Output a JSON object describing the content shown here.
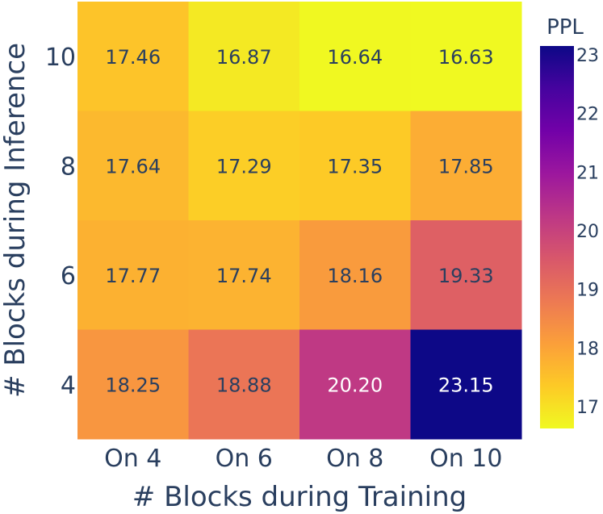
{
  "chart_data": {
    "type": "heatmap",
    "xlabel": "# Blocks during Training",
    "ylabel": "# Blocks during Inference",
    "x_categories": [
      "On 4",
      "On 6",
      "On 8",
      "On 10"
    ],
    "y_categories": [
      "10",
      "8",
      "6",
      "4"
    ],
    "values": [
      [
        17.46,
        16.87,
        16.64,
        16.63
      ],
      [
        17.64,
        17.29,
        17.35,
        17.85
      ],
      [
        17.77,
        17.74,
        18.16,
        19.33
      ],
      [
        18.25,
        18.88,
        20.2,
        23.15
      ]
    ],
    "value_labels": [
      [
        "17.46",
        "16.87",
        "16.64",
        "16.63"
      ],
      [
        "17.64",
        "17.29",
        "17.35",
        "17.85"
      ],
      [
        "17.77",
        "17.74",
        "18.16",
        "19.33"
      ],
      [
        "18.25",
        "18.88",
        "20.20",
        "23.15"
      ]
    ],
    "colorbar": {
      "title": "PPL",
      "ticks": [
        "17",
        "18",
        "19",
        "20",
        "21",
        "22",
        "23"
      ],
      "tick_values": [
        17,
        18,
        19,
        20,
        21,
        22,
        23
      ],
      "range": [
        16.63,
        23.15
      ],
      "colorscale": [
        "#f0f921",
        "#fdca26",
        "#fb9f3a",
        "#ed7953",
        "#d8576b",
        "#bd3786",
        "#9c179e",
        "#7201a8",
        "#46039f",
        "#0d0887"
      ]
    }
  }
}
